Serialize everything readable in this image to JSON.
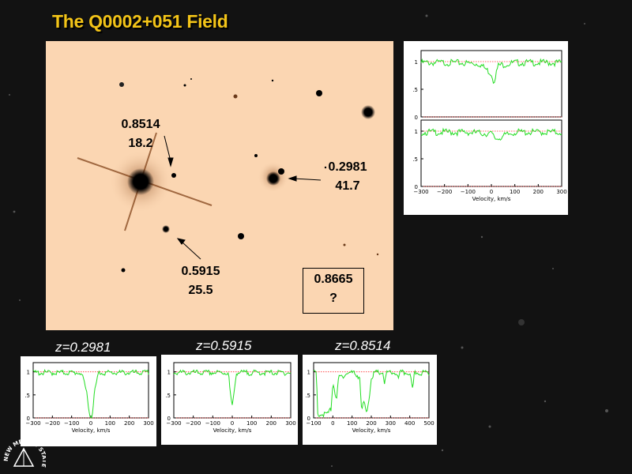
{
  "slide": {
    "title": "The Q0002+051 Field"
  },
  "galaxies": [
    {
      "redshift": "0.8514",
      "value": "18.2"
    },
    {
      "redshift": "0.2981",
      "value": "41.7"
    },
    {
      "redshift": "0.5915",
      "value": "25.5"
    },
    {
      "redshift": "0.8665",
      "value": "?"
    }
  ],
  "colors": {
    "title": "#f3c418",
    "spectrum_line": "#22dd22",
    "reference_line": "#ff3333",
    "field_background": "#fbd6b2"
  },
  "chart_data": [
    {
      "type": "line",
      "panel": "top-right-upper",
      "xlabel": "",
      "ylabel": "",
      "xlim": [
        -300,
        300
      ],
      "ylim": [
        0,
        1.2
      ],
      "yticks": [
        "0",
        ".5",
        "1"
      ],
      "xticks": [],
      "series": [
        {
          "values_desc": "",
          "x": [
            -300,
            -150,
            -50,
            0,
            10,
            30,
            100,
            200,
            300
          ],
          "y": [
            1.0,
            1.0,
            0.98,
            0.8,
            0.66,
            0.95,
            1.0,
            1.0,
            1.0
          ]
        }
      ]
    },
    {
      "type": "line",
      "panel": "top-right-lower",
      "xlabel": "Velocity, km/s",
      "ylabel": "",
      "xlim": [
        -300,
        300
      ],
      "ylim": [
        0,
        1.2
      ],
      "yticks": [
        "0",
        ".5",
        "1"
      ],
      "xticks": [
        "−300",
        "−200",
        "−100",
        "0",
        "100",
        "200",
        "300"
      ],
      "series": [
        {
          "x": [
            -300,
            -100,
            0,
            20,
            100,
            300
          ],
          "y": [
            1.0,
            1.0,
            0.97,
            0.88,
            1.0,
            1.0
          ]
        }
      ]
    },
    {
      "type": "line",
      "panel": "bottom-1",
      "caption": "z=0.2981",
      "xlabel": "Velocity, km/s",
      "ylabel": "",
      "xlim": [
        -300,
        300
      ],
      "ylim": [
        0,
        1.2
      ],
      "yticks": [
        "0",
        ".5",
        "1"
      ],
      "xticks": [
        "−300",
        "−200",
        "−100",
        "0",
        "100",
        "200",
        "300"
      ],
      "series": [
        {
          "x": [
            -300,
            -50,
            -20,
            -5,
            5,
            20,
            40,
            300
          ],
          "y": [
            1.0,
            1.0,
            0.55,
            0.05,
            0.05,
            0.6,
            1.0,
            1.0
          ]
        }
      ]
    },
    {
      "type": "line",
      "panel": "bottom-2",
      "caption": "z=0.5915",
      "xlabel": "Velocity, km/s",
      "ylabel": "",
      "xlim": [
        -300,
        300
      ],
      "ylim": [
        0,
        1.2
      ],
      "yticks": [
        "0",
        ".5",
        "1"
      ],
      "xticks": [
        "−300",
        "−200",
        "−100",
        "0",
        "100",
        "200",
        "300"
      ],
      "series": [
        {
          "x": [
            -300,
            -20,
            -10,
            0,
            10,
            20,
            300
          ],
          "y": [
            1.0,
            1.0,
            0.55,
            0.25,
            0.6,
            1.0,
            1.0
          ]
        }
      ]
    },
    {
      "type": "line",
      "panel": "bottom-3",
      "caption": "z=0.8514",
      "xlabel": "Velocity, km/s",
      "ylabel": "",
      "xlim": [
        -100,
        500
      ],
      "ylim": [
        0,
        1.2
      ],
      "yticks": [
        "0",
        ".5",
        "1"
      ],
      "xticks": [
        "−100",
        "0",
        "100",
        "200",
        "300",
        "400",
        "500"
      ],
      "series": [
        {
          "x": [
            -100,
            -85,
            -80,
            -30,
            -10,
            0,
            20,
            30,
            60,
            80,
            110,
            140,
            150,
            160,
            175,
            190,
            200,
            220,
            260,
            270,
            280,
            330,
            340,
            350,
            400,
            415,
            425,
            500
          ],
          "y": [
            1.0,
            1.0,
            0.1,
            0.1,
            0.2,
            0.8,
            0.4,
            0.9,
            0.95,
            1.0,
            1.0,
            0.9,
            0.1,
            0.4,
            0.1,
            0.5,
            0.9,
            1.0,
            1.0,
            0.75,
            1.0,
            1.0,
            0.85,
            1.0,
            1.0,
            0.6,
            1.0,
            1.0
          ]
        }
      ]
    }
  ],
  "logo": {
    "text": "NEW MEXICO STATE UNIVERSITY"
  }
}
